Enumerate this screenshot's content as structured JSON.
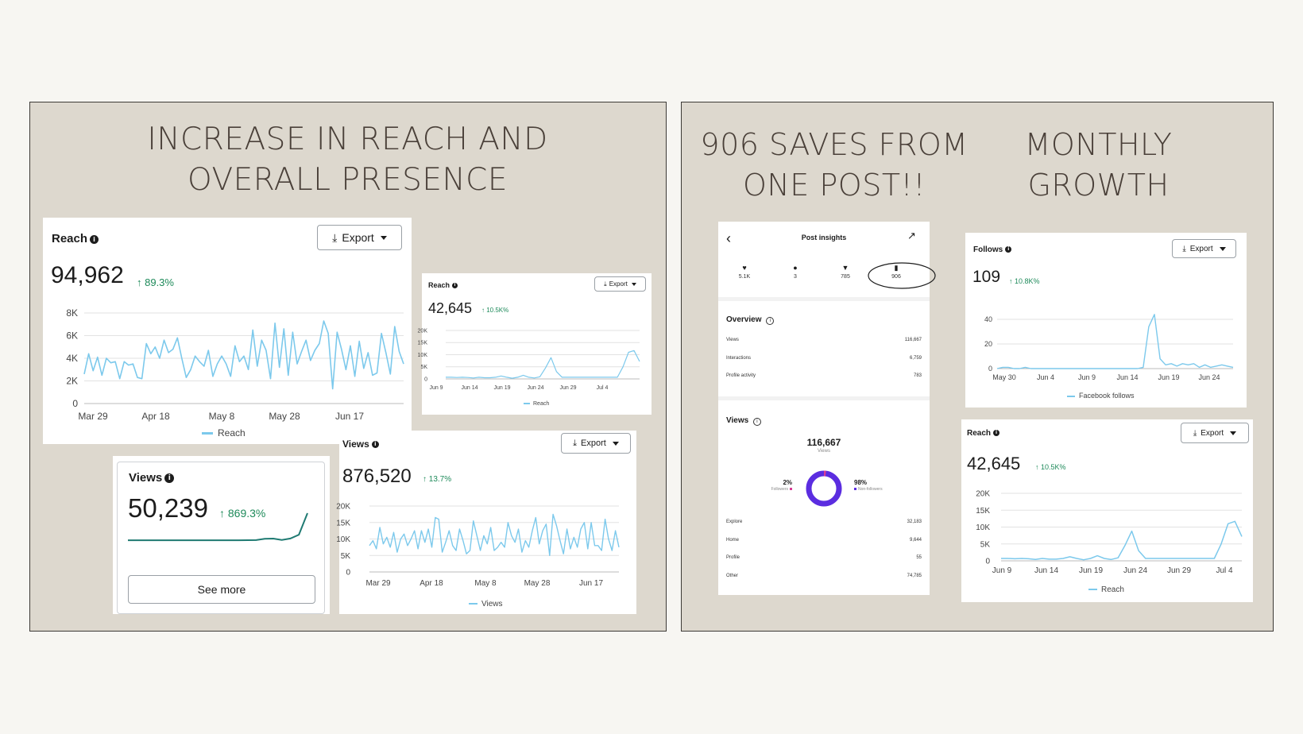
{
  "left_panel": {
    "headline_line1": "INCREASE IN REACH AND",
    "headline_line2": "OVERALL PRESENCE",
    "reach_card": {
      "title": "Reach",
      "value": "94,962",
      "change": "↑ 89.3%",
      "export_label": "Export",
      "legend": "Reach"
    },
    "reach_small_card": {
      "title": "Reach",
      "value": "42,645",
      "change": "↑ 10.5K%",
      "export_label": "Export",
      "legend": "Reach"
    },
    "views_small_card": {
      "title": "Views",
      "value": "50,239",
      "change": "↑ 869.3%",
      "button_label": "See more"
    },
    "views_card": {
      "title": "Views",
      "value": "876,520",
      "change": "↑ 13.7%",
      "export_label": "Export",
      "legend": "Views"
    }
  },
  "right_panel": {
    "saves_headline_line1": "906 SAVES FROM",
    "saves_headline_line2": "ONE POST!!",
    "growth_headline_line1": "MONTHLY",
    "growth_headline_line2": "GROWTH",
    "post_insights": {
      "title": "Post insights",
      "stats": [
        {
          "icon": "heart-icon",
          "value": "5.1K"
        },
        {
          "icon": "comment-icon",
          "value": "3"
        },
        {
          "icon": "share-icon",
          "value": "785"
        },
        {
          "icon": "bookmark-icon",
          "value": "906"
        }
      ],
      "overview_title": "Overview",
      "overview_rows": [
        {
          "label": "Views",
          "value": "116,667"
        },
        {
          "label": "Interactions",
          "value": "6,759"
        },
        {
          "label": "Profile activity",
          "value": "783"
        }
      ],
      "views_title": "Views",
      "views_total": "116,667",
      "views_total_label": "Views",
      "followers_pct": "2%",
      "followers_label": "Followers",
      "non_followers_pct": "98%",
      "non_followers_label": "Non-followers",
      "followers_share": 0.02,
      "source_rows": [
        {
          "label": "Explore",
          "value": "32,183"
        },
        {
          "label": "Home",
          "value": "9,644"
        },
        {
          "label": "Profile",
          "value": "55"
        },
        {
          "label": "Other",
          "value": "74,785"
        }
      ]
    },
    "follows_card": {
      "title": "Follows",
      "value": "109",
      "change": "↑ 10.8K%",
      "export_label": "Export",
      "legend": "Facebook follows"
    },
    "reach_card": {
      "title": "Reach",
      "value": "42,645",
      "change": "↑ 10.5K%",
      "export_label": "Export",
      "legend": "Reach"
    }
  },
  "chart_data": [
    {
      "id": "reach_main",
      "type": "line",
      "x_ticks": [
        "Mar 29",
        "Apr 18",
        "May 8",
        "May 28",
        "Jun 17"
      ],
      "y_ticks": [
        "0",
        "2K",
        "4K",
        "6K",
        "8K"
      ],
      "ylim": [
        0,
        8000
      ],
      "legend": [
        "Reach"
      ],
      "series": [
        {
          "name": "Reach",
          "values": [
            2600,
            4400,
            2900,
            4100,
            2500,
            4000,
            3600,
            3700,
            2200,
            3700,
            3400,
            3500,
            2300,
            2200,
            5300,
            4400,
            5000,
            4000,
            5600,
            4500,
            4800,
            5800,
            4000,
            2300,
            3000,
            4200,
            3700,
            3300,
            4700,
            2400,
            3500,
            4200,
            3500,
            2400,
            5100,
            3700,
            4200,
            3000,
            6500,
            3300,
            5600,
            4700,
            2200,
            7100,
            3200,
            6600,
            2500,
            6300,
            3500,
            4600,
            5600,
            3800,
            4700,
            5300,
            7300,
            6200,
            1300,
            6300,
            4800,
            3000,
            5100,
            2400,
            5500,
            3100,
            4500,
            2500,
            2700,
            6200,
            4500,
            2600,
            6800,
            4600,
            3500
          ]
        }
      ]
    },
    {
      "id": "reach_small",
      "type": "line",
      "x_ticks": [
        "Jun 9",
        "Jun 14",
        "Jun 19",
        "Jun 24",
        "Jun 29",
        "Jul 4"
      ],
      "y_ticks": [
        "0",
        "5K",
        "10K",
        "15K",
        "20K"
      ],
      "ylim": [
        0,
        20000
      ],
      "legend": [
        "Reach"
      ],
      "series": [
        {
          "name": "Reach",
          "values": [
            700,
            700,
            600,
            700,
            600,
            400,
            700,
            500,
            500,
            700,
            1200,
            700,
            300,
            700,
            1500,
            700,
            400,
            900,
            4500,
            8800,
            3000,
            700,
            700,
            700,
            700,
            700,
            700,
            700,
            700,
            700,
            700,
            700,
            5000,
            11000,
            11700,
            7200
          ]
        }
      ]
    },
    {
      "id": "views_sparkline",
      "type": "line",
      "series": [
        {
          "name": "",
          "values": [
            200,
            200,
            200,
            200,
            200,
            200,
            200,
            200,
            200,
            200,
            200,
            200,
            200,
            210,
            220,
            260,
            650,
            680,
            300,
            700,
            1800,
            8000
          ]
        }
      ]
    },
    {
      "id": "views_main",
      "type": "line",
      "x_ticks": [
        "Mar 29",
        "Apr 18",
        "May 8",
        "May 28",
        "Jun 17"
      ],
      "y_ticks": [
        "0",
        "5K",
        "10K",
        "15K",
        "20K"
      ],
      "ylim": [
        0,
        20000
      ],
      "legend": [
        "Views"
      ],
      "series": [
        {
          "name": "Views",
          "values": [
            8000,
            9500,
            7000,
            13500,
            8500,
            10500,
            7500,
            12000,
            6000,
            10000,
            11500,
            8000,
            10000,
            12500,
            7000,
            12500,
            9000,
            13000,
            7500,
            16500,
            16000,
            6000,
            9000,
            12500,
            8000,
            6500,
            13000,
            9500,
            5500,
            6500,
            15500,
            11000,
            6500,
            11000,
            8500,
            13500,
            6500,
            7500,
            9000,
            7500,
            15000,
            11000,
            9000,
            13000,
            6000,
            9500,
            7500,
            12500,
            16500,
            8500,
            12500,
            14500,
            5000,
            17500,
            14000,
            9500,
            5500,
            13000,
            7000,
            10500,
            7500,
            13000,
            15000,
            7000,
            15000,
            8000,
            8000,
            6500,
            16000,
            10000,
            6500,
            12500,
            7500
          ]
        }
      ]
    },
    {
      "id": "follows",
      "type": "line",
      "x_ticks": [
        "May 30",
        "Jun 4",
        "Jun 9",
        "Jun 14",
        "Jun 19",
        "Jun 24"
      ],
      "y_ticks": [
        "0",
        "20",
        "40"
      ],
      "ylim": [
        0,
        40
      ],
      "legend": [
        "Facebook follows"
      ],
      "series": [
        {
          "name": "Facebook follows",
          "values": [
            0,
            1,
            1,
            0,
            0,
            1,
            0,
            0,
            0,
            0,
            0,
            0,
            0,
            0,
            0,
            0,
            0,
            0,
            0,
            0,
            0,
            0,
            0,
            0,
            0,
            0,
            1,
            34,
            44,
            8,
            3,
            4,
            2,
            4,
            3,
            4,
            1,
            3,
            1,
            2,
            3,
            2,
            1
          ]
        }
      ]
    },
    {
      "id": "reach_right",
      "type": "line",
      "x_ticks": [
        "Jun 9",
        "Jun 14",
        "Jun 19",
        "Jun 24",
        "Jun 29",
        "Jul 4"
      ],
      "y_ticks": [
        "0",
        "5K",
        "10K",
        "15K",
        "20K"
      ],
      "ylim": [
        0,
        20000
      ],
      "legend": [
        "Reach"
      ],
      "series": [
        {
          "name": "Reach",
          "values": [
            700,
            700,
            600,
            700,
            600,
            400,
            700,
            500,
            500,
            700,
            1200,
            700,
            300,
            700,
            1500,
            700,
            400,
            900,
            4500,
            8800,
            3000,
            700,
            700,
            700,
            700,
            700,
            700,
            700,
            700,
            700,
            700,
            700,
            5000,
            11000,
            11700,
            7200
          ]
        }
      ]
    }
  ],
  "colors": {
    "panel_bg": "#ddd8ce",
    "page_bg": "#f7f6f2",
    "line_blue": "#7cc9ec",
    "sparkline_teal": "#1f7a72",
    "positive_green": "#1e8a5a",
    "ring_purple": "#5b2de0",
    "followers_pink": "#d83c94"
  }
}
